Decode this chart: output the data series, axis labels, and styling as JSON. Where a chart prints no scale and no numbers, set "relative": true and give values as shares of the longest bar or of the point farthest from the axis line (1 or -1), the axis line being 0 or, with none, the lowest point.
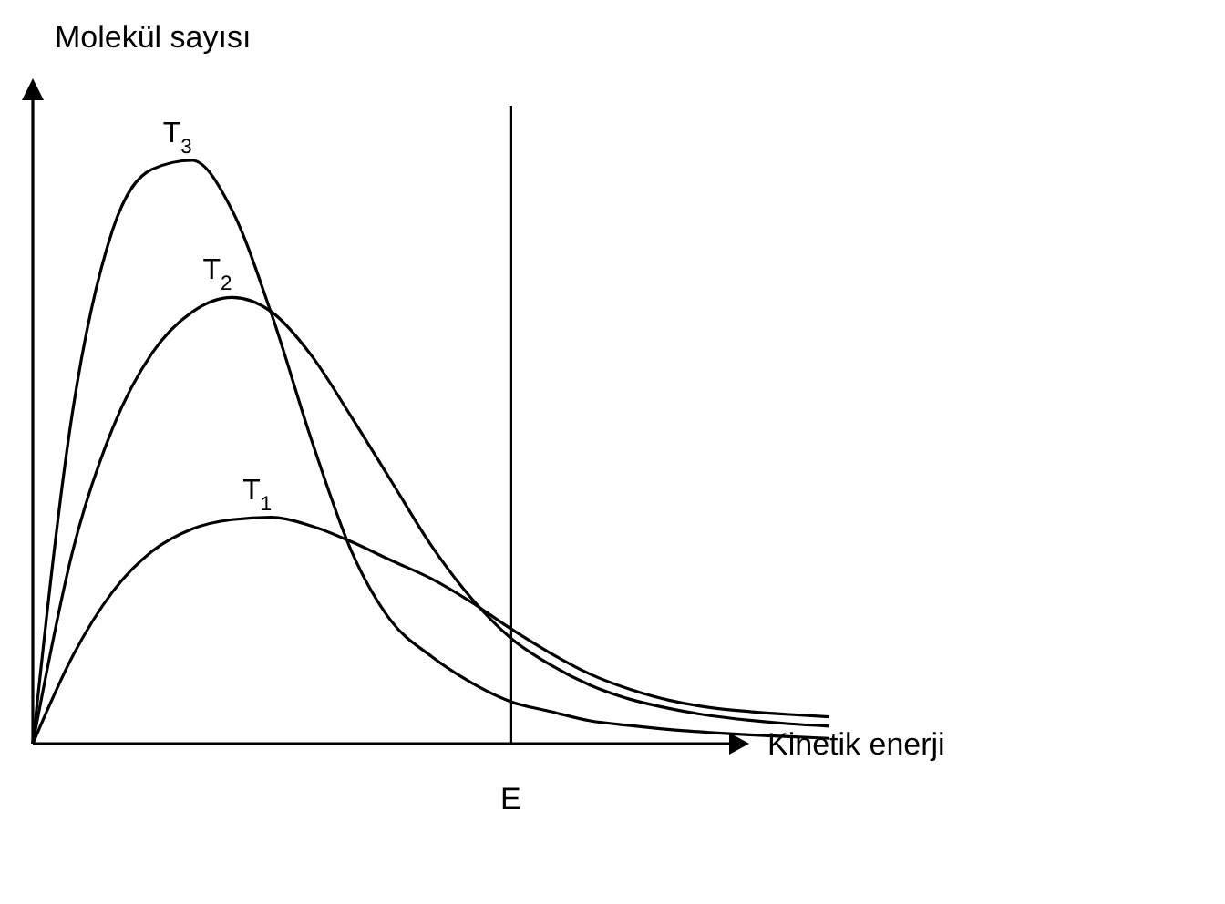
{
  "chart_data": {
    "type": "line",
    "relative": true,
    "xlabel": "Kinetik enerji",
    "ylabel": "Molekül sayısı",
    "marker": "none",
    "line_style": "solid",
    "categories": [
      null,
      null,
      null,
      null,
      null,
      null,
      null,
      null,
      null,
      null,
      null,
      null,
      null,
      null,
      null,
      null,
      null,
      null,
      null,
      null,
      null
    ],
    "annotations": [
      "E"
    ],
    "series": [
      {
        "name": "T$_{3}$",
        "color": "#000000",
        "values": [
          0,
          0.57,
          0.88,
          0.985,
          1,
          0.915,
          0.735,
          0.52,
          0.33,
          0.21,
          0.15,
          0.105,
          0.072,
          0.055,
          0.039,
          0.031,
          0.024,
          0.019,
          0.015,
          0.012,
          0.009
        ]
      },
      {
        "name": "T$_{2}$",
        "color": "#000000",
        "values": [
          0,
          0.33,
          0.54,
          0.67,
          0.74,
          0.765,
          0.74,
          0.665,
          0.56,
          0.45,
          0.34,
          0.25,
          0.181,
          0.135,
          0.1,
          0.076,
          0.06,
          0.048,
          0.04,
          0.034,
          0.03
        ]
      },
      {
        "name": "T$_{1}$",
        "color": "#000000",
        "values": [
          0,
          0.15,
          0.26,
          0.33,
          0.368,
          0.384,
          0.388,
          0.373,
          0.346,
          0.314,
          0.283,
          0.243,
          0.197,
          0.155,
          0.119,
          0.093,
          0.074,
          0.062,
          0.055,
          0.05,
          0.046
        ]
      }
    ]
  }
}
